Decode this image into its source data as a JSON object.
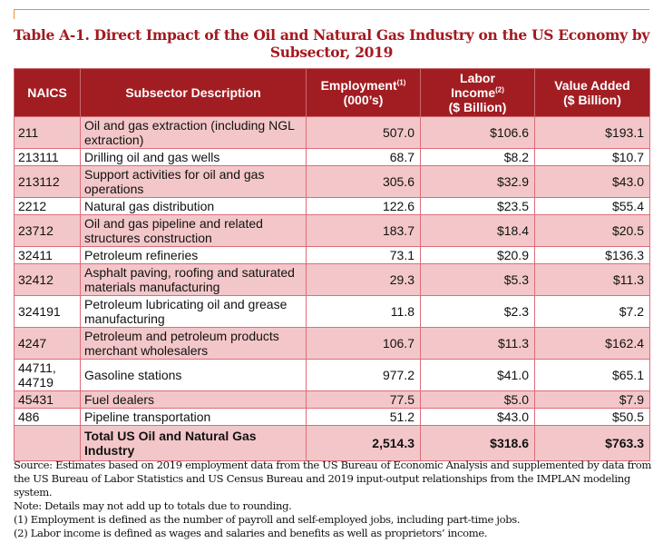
{
  "title": "Table A-1. Direct Impact of the Oil and Natural Gas Industry on the US Economy by Subsector, 2019",
  "colors": {
    "header_bg": "#a21d22",
    "title": "#a3191f",
    "stripe": "#f3c7c9",
    "rule": "#e8913a"
  },
  "columns": {
    "naics": "NAICS",
    "description": "Subsector Description",
    "employment": "Employment",
    "employment_note": "(1)",
    "employment_unit": "(000’s)",
    "labor_a": "Labor",
    "labor_b": "Income",
    "labor_note": "(2)",
    "labor_unit": "($ Billion)",
    "value": "Value Added",
    "value_unit": "($ Billion)"
  },
  "rows": [
    {
      "naics": "211",
      "description": "Oil and gas extraction (including NGL extraction)",
      "employment": "507.0",
      "labor_income": "$106.6",
      "value_added": "$193.1"
    },
    {
      "naics": "213111",
      "description": "Drilling oil and gas wells",
      "employment": "68.7",
      "labor_income": "$8.2",
      "value_added": "$10.7"
    },
    {
      "naics": "213112",
      "description": "Support activities for oil and gas operations",
      "employment": "305.6",
      "labor_income": "$32.9",
      "value_added": "$43.0"
    },
    {
      "naics": "2212",
      "description": "Natural gas distribution",
      "employment": "122.6",
      "labor_income": "$23.5",
      "value_added": "$55.4"
    },
    {
      "naics": "23712",
      "description": "Oil and gas pipeline and related structures construction",
      "employment": "183.7",
      "labor_income": "$18.4",
      "value_added": "$20.5"
    },
    {
      "naics": "32411",
      "description": "Petroleum refineries",
      "employment": "73.1",
      "labor_income": "$20.9",
      "value_added": "$136.3"
    },
    {
      "naics": "32412",
      "description": "Asphalt paving, roofing and saturated materials manufacturing",
      "employment": "29.3",
      "labor_income": "$5.3",
      "value_added": "$11.3"
    },
    {
      "naics": "324191",
      "description": "Petroleum lubricating oil and grease manufacturing",
      "employment": "11.8",
      "labor_income": "$2.3",
      "value_added": "$7.2"
    },
    {
      "naics": "4247",
      "description": "Petroleum and petroleum products merchant wholesalers",
      "employment": "106.7",
      "labor_income": "$11.3",
      "value_added": "$162.4"
    },
    {
      "naics": "44711, 44719",
      "description": "Gasoline stations",
      "employment": "977.2",
      "labor_income": "$41.0",
      "value_added": "$65.1"
    },
    {
      "naics": "45431",
      "description": "Fuel dealers",
      "employment": "77.5",
      "labor_income": "$5.0",
      "value_added": "$7.9"
    },
    {
      "naics": "486",
      "description": "Pipeline transportation",
      "employment": "51.2",
      "labor_income": "$43.0",
      "value_added": "$50.5"
    }
  ],
  "total": {
    "naics": "",
    "description": "Total US Oil and Natural Gas Industry",
    "employment": "2,514.3",
    "labor_income": "$318.6",
    "value_added": "$763.3"
  },
  "notes": [
    "Source: Estimates based on 2019 employment data from the US Bureau of Economic Analysis and supplemented by data from the US Bureau of Labor Statistics and US Census Bureau and 2019 input-output relationships from the IMPLAN modeling system.",
    "Note: Details may not add up to totals due to rounding.",
    "(1) Employment is defined as the number of payroll and self-employed jobs, including part-time jobs.",
    "(2) Labor income is defined as wages and salaries and benefits as well as proprietors’ income."
  ]
}
